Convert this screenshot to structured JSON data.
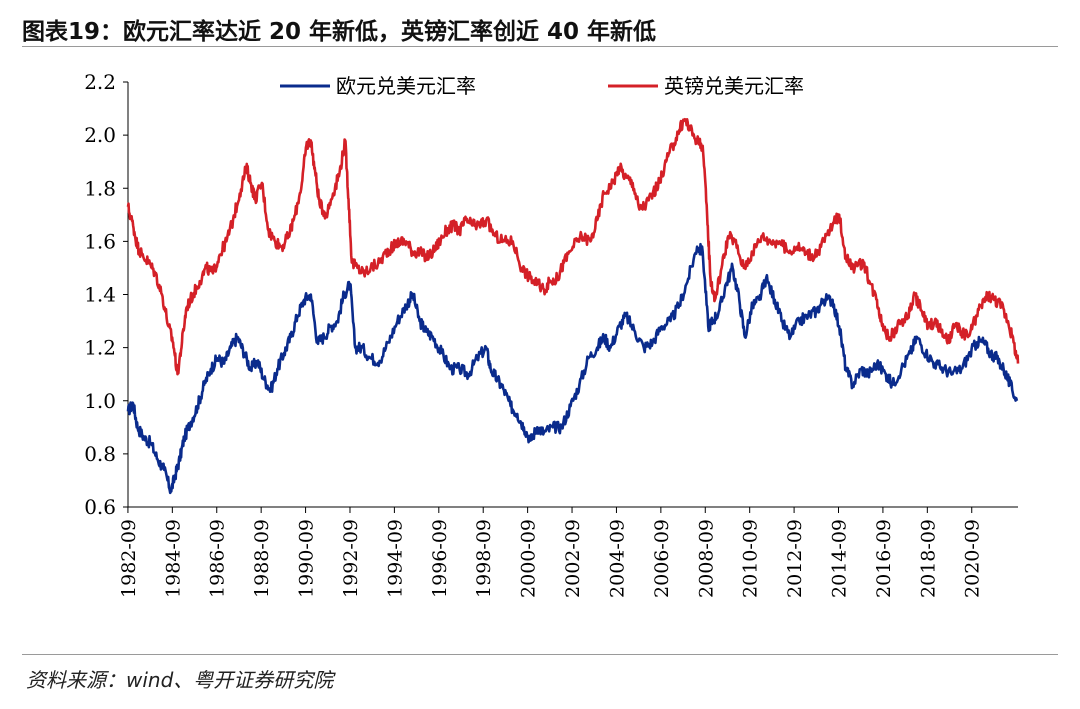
{
  "header": {
    "title": "图表19：欧元汇率达近 20 年新低，英镑汇率创近 40 年新低"
  },
  "footer": {
    "source": "资料来源：wind、粤开证券研究院"
  },
  "chart_data": {
    "type": "line",
    "title": "图表19：欧元汇率达近 20 年新低，英镑汇率创近 40 年新低",
    "xlabel": "",
    "ylabel": "",
    "ylim": [
      0.6,
      2.2
    ],
    "yticks": [
      "0.6",
      "0.8",
      "1.0",
      "1.2",
      "1.4",
      "1.6",
      "1.8",
      "2.0",
      "2.2"
    ],
    "xlim": [
      1982.67,
      2022.75
    ],
    "xticks": [
      "1982-09",
      "1984-09",
      "1986-09",
      "1988-09",
      "1990-09",
      "1992-09",
      "1994-09",
      "1996-09",
      "1998-09",
      "2000-09",
      "2002-09",
      "2004-09",
      "2006-09",
      "2008-09",
      "2010-09",
      "2012-09",
      "2014-09",
      "2016-09",
      "2018-09",
      "2020-09"
    ],
    "legend_position": "top",
    "grid": false,
    "series": [
      {
        "name": "欧元兑美元汇率",
        "color": "#0a2b8c",
        "x": [
          1982.67,
          1982.9,
          1983.1,
          1983.4,
          1983.7,
          1984.0,
          1984.3,
          1984.6,
          1984.8,
          1985.0,
          1985.2,
          1985.5,
          1985.8,
          1986.1,
          1986.4,
          1986.7,
          1987.0,
          1987.3,
          1987.6,
          1987.9,
          1988.2,
          1988.5,
          1988.8,
          1989.1,
          1989.4,
          1989.7,
          1990.0,
          1990.3,
          1990.6,
          1990.9,
          1991.2,
          1991.5,
          1991.8,
          1992.1,
          1992.4,
          1992.67,
          1992.9,
          1993.2,
          1993.6,
          1994.0,
          1994.4,
          1994.8,
          1995.2,
          1995.5,
          1995.8,
          1996.1,
          1996.4,
          1996.8,
          1997.2,
          1997.6,
          1998.0,
          1998.4,
          1998.8,
          1999.0,
          1999.3,
          1999.6,
          1999.9,
          2000.2,
          2000.5,
          2000.8,
          2001.1,
          2001.4,
          2001.8,
          2002.2,
          2002.6,
          2003.0,
          2003.4,
          2003.8,
          2004.1,
          2004.4,
          2004.8,
          2005.1,
          2005.5,
          2005.9,
          2006.3,
          2006.7,
          2007.1,
          2007.5,
          2007.9,
          2008.3,
          2008.55,
          2008.8,
          2009.0,
          2009.3,
          2009.6,
          2009.9,
          2010.2,
          2010.45,
          2010.8,
          2011.1,
          2011.4,
          2011.8,
          2012.1,
          2012.5,
          2012.9,
          2013.3,
          2013.7,
          2014.0,
          2014.4,
          2014.7,
          2015.0,
          2015.3,
          2015.7,
          2016.0,
          2016.4,
          2016.8,
          2017.1,
          2017.5,
          2017.9,
          2018.2,
          2018.6,
          2019.0,
          2019.4,
          2019.8,
          2020.2,
          2020.6,
          2020.9,
          2021.2,
          2021.5,
          2021.8,
          2022.1,
          2022.4,
          2022.7
        ],
        "values": [
          0.96,
          0.99,
          0.9,
          0.86,
          0.84,
          0.78,
          0.74,
          0.66,
          0.72,
          0.78,
          0.86,
          0.92,
          0.98,
          1.06,
          1.12,
          1.16,
          1.14,
          1.2,
          1.24,
          1.18,
          1.12,
          1.15,
          1.08,
          1.04,
          1.12,
          1.18,
          1.24,
          1.32,
          1.38,
          1.4,
          1.22,
          1.24,
          1.28,
          1.3,
          1.4,
          1.44,
          1.2,
          1.2,
          1.16,
          1.15,
          1.22,
          1.3,
          1.36,
          1.4,
          1.3,
          1.26,
          1.24,
          1.18,
          1.12,
          1.12,
          1.1,
          1.16,
          1.2,
          1.12,
          1.08,
          1.04,
          0.98,
          0.95,
          0.9,
          0.85,
          0.9,
          0.88,
          0.9,
          0.9,
          0.98,
          1.06,
          1.16,
          1.2,
          1.24,
          1.2,
          1.28,
          1.32,
          1.26,
          1.2,
          1.22,
          1.28,
          1.3,
          1.36,
          1.46,
          1.58,
          1.56,
          1.28,
          1.3,
          1.34,
          1.44,
          1.5,
          1.38,
          1.24,
          1.36,
          1.38,
          1.46,
          1.38,
          1.3,
          1.24,
          1.3,
          1.32,
          1.34,
          1.38,
          1.38,
          1.28,
          1.12,
          1.06,
          1.12,
          1.1,
          1.14,
          1.1,
          1.06,
          1.12,
          1.18,
          1.24,
          1.18,
          1.14,
          1.12,
          1.1,
          1.12,
          1.18,
          1.22,
          1.22,
          1.18,
          1.16,
          1.12,
          1.06,
          1.0
        ]
      },
      {
        "name": "英镑兑美元汇率",
        "color": "#d42027",
        "x": [
          1982.67,
          1982.9,
          1983.1,
          1983.3,
          1983.6,
          1983.9,
          1984.2,
          1984.5,
          1984.7,
          1984.9,
          1985.1,
          1985.3,
          1985.6,
          1985.9,
          1986.2,
          1986.5,
          1986.8,
          1987.1,
          1987.4,
          1987.7,
          1988.0,
          1988.2,
          1988.4,
          1988.7,
          1989.0,
          1989.3,
          1989.6,
          1989.9,
          1990.2,
          1990.5,
          1990.7,
          1990.9,
          1991.1,
          1991.3,
          1991.6,
          1991.9,
          1992.2,
          1992.45,
          1992.6,
          1992.75,
          1993.0,
          1993.3,
          1993.6,
          1994.0,
          1994.3,
          1994.6,
          1994.9,
          1995.2,
          1995.5,
          1995.8,
          1996.1,
          1996.4,
          1996.7,
          1997.0,
          1997.3,
          1997.6,
          1997.9,
          1998.2,
          1998.5,
          1998.8,
          1999.2,
          1999.6,
          2000.0,
          2000.4,
          2000.8,
          2001.1,
          2001.4,
          2001.7,
          2002.0,
          2002.3,
          2002.7,
          2003.1,
          2003.5,
          2003.8,
          2004.1,
          2004.5,
          2004.8,
          2005.1,
          2005.4,
          2005.7,
          2006.0,
          2006.3,
          2006.6,
          2006.9,
          2007.2,
          2007.5,
          2007.75,
          2008.0,
          2008.3,
          2008.55,
          2008.75,
          2008.9,
          2009.1,
          2009.4,
          2009.7,
          2010.0,
          2010.4,
          2010.8,
          2011.2,
          2011.6,
          2012.0,
          2012.4,
          2012.8,
          2013.2,
          2013.6,
          2014.0,
          2014.4,
          2014.7,
          2015.0,
          2015.4,
          2015.8,
          2016.1,
          2016.4,
          2016.6,
          2016.9,
          2017.2,
          2017.5,
          2017.8,
          2018.1,
          2018.4,
          2018.7,
          2019.0,
          2019.3,
          2019.6,
          2019.9,
          2020.2,
          2020.5,
          2020.8,
          2021.1,
          2021.4,
          2021.7,
          2022.0,
          2022.3,
          2022.55,
          2022.75
        ],
        "values": [
          1.73,
          1.66,
          1.58,
          1.55,
          1.52,
          1.48,
          1.4,
          1.28,
          1.22,
          1.1,
          1.22,
          1.35,
          1.4,
          1.45,
          1.5,
          1.48,
          1.55,
          1.6,
          1.68,
          1.78,
          1.88,
          1.82,
          1.76,
          1.82,
          1.64,
          1.6,
          1.58,
          1.62,
          1.7,
          1.82,
          1.96,
          1.98,
          1.86,
          1.74,
          1.7,
          1.78,
          1.86,
          1.98,
          1.76,
          1.52,
          1.5,
          1.48,
          1.5,
          1.52,
          1.56,
          1.58,
          1.6,
          1.6,
          1.56,
          1.56,
          1.54,
          1.56,
          1.6,
          1.64,
          1.66,
          1.64,
          1.68,
          1.66,
          1.66,
          1.68,
          1.62,
          1.6,
          1.6,
          1.5,
          1.46,
          1.44,
          1.42,
          1.45,
          1.46,
          1.52,
          1.58,
          1.62,
          1.6,
          1.68,
          1.78,
          1.82,
          1.88,
          1.84,
          1.82,
          1.72,
          1.74,
          1.78,
          1.82,
          1.9,
          1.96,
          2.02,
          2.06,
          2.02,
          1.98,
          1.96,
          1.7,
          1.46,
          1.38,
          1.5,
          1.62,
          1.6,
          1.5,
          1.56,
          1.62,
          1.6,
          1.6,
          1.56,
          1.58,
          1.56,
          1.54,
          1.6,
          1.66,
          1.7,
          1.54,
          1.5,
          1.52,
          1.44,
          1.38,
          1.3,
          1.24,
          1.26,
          1.3,
          1.32,
          1.4,
          1.34,
          1.28,
          1.3,
          1.26,
          1.22,
          1.28,
          1.26,
          1.24,
          1.3,
          1.36,
          1.4,
          1.38,
          1.36,
          1.3,
          1.22,
          1.14
        ]
      }
    ]
  }
}
